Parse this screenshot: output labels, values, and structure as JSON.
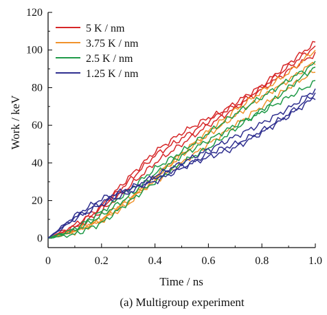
{
  "chart_data": {
    "type": "line",
    "caption": "(a) Multigroup experiment",
    "xlabel": "Time / ns",
    "ylabel": "Work / keV",
    "xlim": [
      0,
      1.0
    ],
    "ylim": [
      -5,
      120
    ],
    "xticks": [
      0,
      0.2,
      0.4,
      0.6,
      0.8,
      1.0
    ],
    "xtick_labels": [
      "0",
      "0.2",
      "0.4",
      "0.6",
      "0.8",
      "1.0"
    ],
    "yticks": [
      0,
      20,
      40,
      60,
      80,
      100,
      120
    ],
    "ytick_labels": [
      "0",
      "20",
      "40",
      "60",
      "80",
      "100",
      "120"
    ],
    "grid": false,
    "legend_position": "top-left",
    "legend": [
      {
        "label": "5 K / nm",
        "color": "#d62728"
      },
      {
        "label": "3.75 K / nm",
        "color": "#f0922b"
      },
      {
        "label": "2.5 K / nm",
        "color": "#1f9a48"
      },
      {
        "label": "1.25 K / nm",
        "color": "#2f2f8f"
      }
    ],
    "series": [
      {
        "name": "5 K / nm",
        "color": "#d62728",
        "x": [
          0,
          0.1,
          0.2,
          0.3,
          0.4,
          0.5,
          0.6,
          0.7,
          0.8,
          0.9,
          1.0
        ],
        "y": [
          0,
          6,
          16,
          30,
          44,
          53,
          62,
          72,
          81,
          93,
          104
        ]
      },
      {
        "name": "5 K / nm",
        "color": "#d62728",
        "x": [
          0,
          0.1,
          0.2,
          0.3,
          0.4,
          0.5,
          0.6,
          0.7,
          0.8,
          0.9,
          1.0
        ],
        "y": [
          0,
          7,
          17,
          32,
          46,
          56,
          64,
          70,
          80,
          91,
          102
        ]
      },
      {
        "name": "5 K / nm",
        "color": "#d62728",
        "x": [
          0,
          0.1,
          0.2,
          0.3,
          0.4,
          0.5,
          0.6,
          0.7,
          0.8,
          0.9,
          1.0
        ],
        "y": [
          0,
          5,
          14,
          27,
          40,
          50,
          60,
          69,
          79,
          89,
          98
        ]
      },
      {
        "name": "3.75 K / nm",
        "color": "#f0922b",
        "x": [
          0,
          0.1,
          0.2,
          0.3,
          0.4,
          0.5,
          0.6,
          0.7,
          0.8,
          0.9,
          1.0
        ],
        "y": [
          0,
          4,
          10,
          20,
          33,
          45,
          57,
          68,
          78,
          88,
          100
        ]
      },
      {
        "name": "3.75 K / nm",
        "color": "#f0922b",
        "x": [
          0,
          0.1,
          0.2,
          0.3,
          0.4,
          0.5,
          0.6,
          0.7,
          0.8,
          0.9,
          1.0
        ],
        "y": [
          0,
          3,
          9,
          18,
          32,
          44,
          55,
          65,
          75,
          84,
          94
        ]
      },
      {
        "name": "3.75 K / nm",
        "color": "#f0922b",
        "x": [
          0,
          0.1,
          0.2,
          0.3,
          0.4,
          0.5,
          0.6,
          0.7,
          0.8,
          0.9,
          1.0
        ],
        "y": [
          0,
          4,
          10,
          21,
          30,
          40,
          50,
          60,
          70,
          80,
          89
        ]
      },
      {
        "name": "2.5 K / nm",
        "color": "#1f9a48",
        "x": [
          0,
          0.1,
          0.2,
          0.3,
          0.4,
          0.5,
          0.6,
          0.7,
          0.8,
          0.9,
          1.0
        ],
        "y": [
          0,
          5,
          14,
          25,
          37,
          46,
          56,
          66,
          75,
          84,
          93
        ]
      },
      {
        "name": "2.5 K / nm",
        "color": "#1f9a48",
        "x": [
          0,
          0.1,
          0.2,
          0.3,
          0.4,
          0.5,
          0.6,
          0.7,
          0.8,
          0.9,
          1.0
        ],
        "y": [
          0,
          4,
          12,
          22,
          34,
          44,
          52,
          60,
          67,
          75,
          83
        ]
      },
      {
        "name": "2.5 K / nm",
        "color": "#1f9a48",
        "x": [
          0,
          0.1,
          0.2,
          0.3,
          0.4,
          0.5,
          0.6,
          0.7,
          0.8,
          0.9,
          1.0
        ],
        "y": [
          0,
          2,
          8,
          19,
          30,
          40,
          48,
          58,
          68,
          80,
          91
        ]
      },
      {
        "name": "1.25 K / nm",
        "color": "#2f2f8f",
        "x": [
          0,
          0.1,
          0.2,
          0.3,
          0.4,
          0.5,
          0.6,
          0.7,
          0.8,
          0.9,
          1.0
        ],
        "y": [
          0,
          12,
          21,
          26,
          33,
          40,
          47,
          54,
          61,
          69,
          79
        ]
      },
      {
        "name": "1.25 K / nm",
        "color": "#2f2f8f",
        "x": [
          0,
          0.1,
          0.2,
          0.3,
          0.4,
          0.5,
          0.6,
          0.7,
          0.8,
          0.9,
          1.0
        ],
        "y": [
          0,
          11,
          19,
          26,
          30,
          37,
          45,
          50,
          57,
          66,
          77
        ]
      },
      {
        "name": "1.25 K / nm",
        "color": "#2f2f8f",
        "x": [
          0,
          0.1,
          0.2,
          0.3,
          0.4,
          0.5,
          0.6,
          0.7,
          0.8,
          0.9,
          1.0
        ],
        "y": [
          0,
          10,
          18,
          24,
          32,
          38,
          43,
          48,
          56,
          65,
          75
        ]
      }
    ]
  }
}
